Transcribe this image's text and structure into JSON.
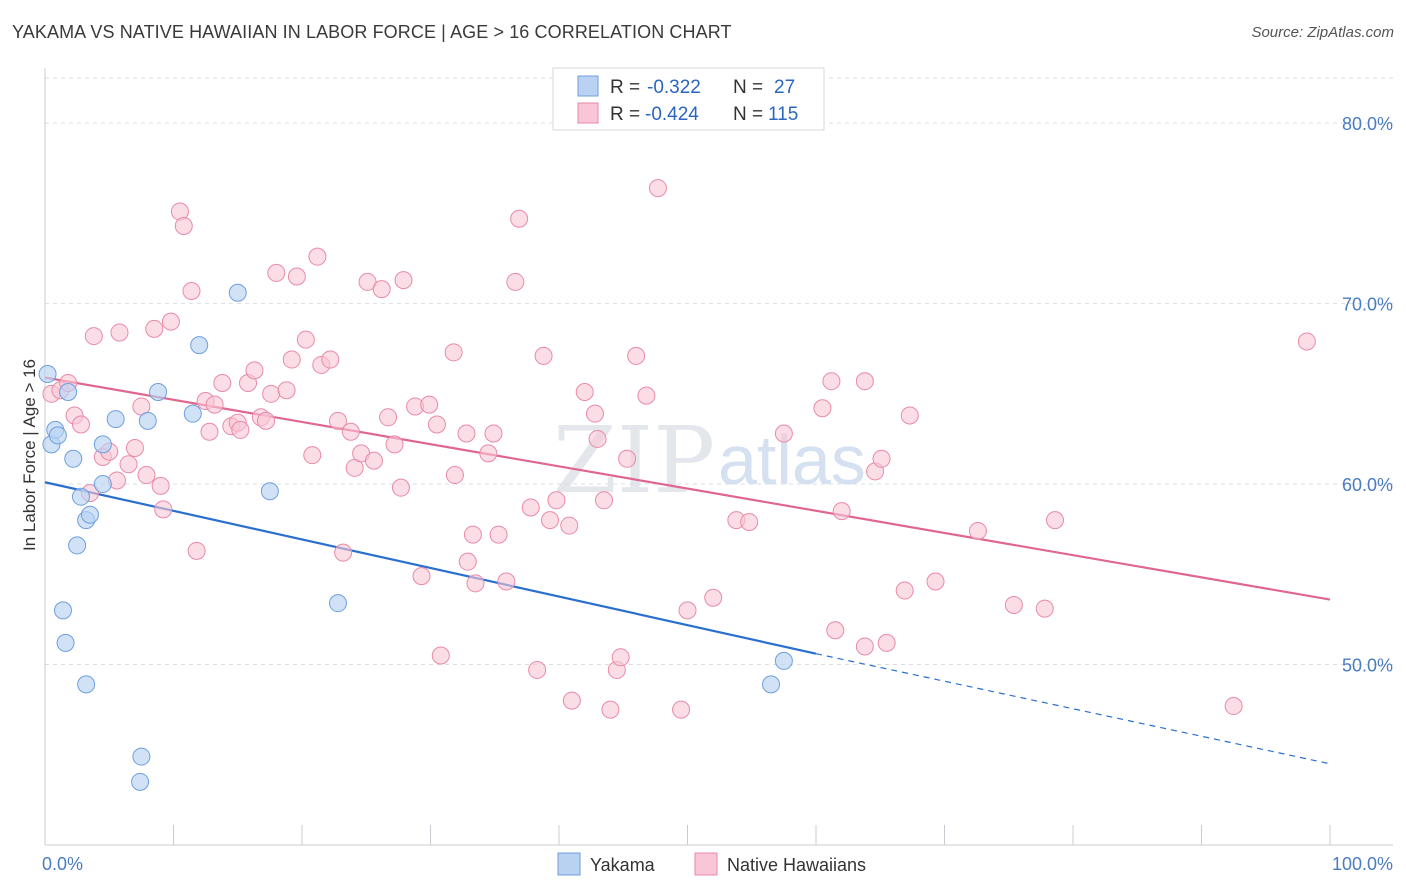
{
  "header": {
    "title": "YAKAMA VS NATIVE HAWAIIAN IN LABOR FORCE | AGE > 16 CORRELATION CHART",
    "source": "Source: ZipAtlas.com"
  },
  "watermark": {
    "zip": "ZIP",
    "atlas": "atlas"
  },
  "legend": {
    "rows": [
      {
        "r_label": "R =",
        "r_value": "-0.322",
        "n_label": "N =",
        "n_value": "27"
      },
      {
        "r_label": "R =",
        "r_value": "-0.424",
        "n_label": "N =",
        "n_value": "115"
      }
    ]
  },
  "colors": {
    "yakama_fill": "#b9d2f2",
    "yakama_stroke": "#6e9fde",
    "yakama_line": "#2a6fd0",
    "hawaiian_fill": "#f8c6d6",
    "hawaiian_stroke": "#e98aaa",
    "hawaiian_line": "#e06690",
    "grid": "#d9dde3",
    "axis_text": "#4a7cc0"
  },
  "chart_data": {
    "type": "scatter",
    "title": "YAKAMA VS NATIVE HAWAIIAN IN LABOR FORCE | AGE > 16 CORRELATION CHART",
    "xlabel": "",
    "ylabel": "In Labor Force | Age > 16",
    "xlim": [
      0,
      100
    ],
    "ylim": [
      40.0,
      82.5
    ],
    "x_tick_labels": [
      "0.0%",
      "100.0%"
    ],
    "y_ticks": [
      50,
      60,
      70,
      80
    ],
    "y_tick_labels": [
      "50.0%",
      "60.0%",
      "70.0%",
      "80.0%"
    ],
    "grid": true,
    "legend_position": "top-center",
    "series": [
      {
        "name": "Yakama",
        "r": -0.322,
        "n": 27,
        "trend": {
          "x0": 0,
          "y0": 60.1,
          "x1": 60,
          "y1": 50.6,
          "dashed_to_x": 100,
          "dashed_to_y": 44.5
        },
        "points": [
          [
            0.2,
            66.1
          ],
          [
            0.5,
            62.2
          ],
          [
            0.8,
            63.0
          ],
          [
            1.0,
            62.7
          ],
          [
            1.8,
            65.1
          ],
          [
            2.2,
            61.4
          ],
          [
            2.5,
            56.6
          ],
          [
            2.8,
            59.3
          ],
          [
            3.2,
            58.0
          ],
          [
            3.5,
            58.3
          ],
          [
            4.5,
            62.2
          ],
          [
            4.5,
            60.0
          ],
          [
            5.5,
            63.6
          ],
          [
            8.0,
            63.5
          ],
          [
            8.8,
            65.1
          ],
          [
            11.5,
            63.9
          ],
          [
            12.0,
            67.7
          ],
          [
            15.0,
            70.6
          ],
          [
            17.5,
            59.6
          ],
          [
            22.8,
            53.4
          ],
          [
            1.4,
            53.0
          ],
          [
            1.6,
            51.2
          ],
          [
            3.2,
            48.9
          ],
          [
            7.5,
            44.9
          ],
          [
            7.4,
            43.5
          ],
          [
            56.5,
            48.9
          ],
          [
            57.5,
            50.2
          ]
        ]
      },
      {
        "name": "Native Hawaiians",
        "r": -0.424,
        "n": 115,
        "trend": {
          "x0": 0,
          "y0": 65.9,
          "x1": 100,
          "y1": 53.6
        },
        "points": [
          [
            0.5,
            65.0
          ],
          [
            1.2,
            65.2
          ],
          [
            1.8,
            65.6
          ],
          [
            2.3,
            63.8
          ],
          [
            2.8,
            63.3
          ],
          [
            3.5,
            59.5
          ],
          [
            3.8,
            68.2
          ],
          [
            4.5,
            61.5
          ],
          [
            5.0,
            61.8
          ],
          [
            5.6,
            60.2
          ],
          [
            5.8,
            68.4
          ],
          [
            6.5,
            61.1
          ],
          [
            7.0,
            62.0
          ],
          [
            7.5,
            64.3
          ],
          [
            7.9,
            60.5
          ],
          [
            8.5,
            68.6
          ],
          [
            9.0,
            59.9
          ],
          [
            9.2,
            58.6
          ],
          [
            9.8,
            69.0
          ],
          [
            10.5,
            75.1
          ],
          [
            10.8,
            74.3
          ],
          [
            11.4,
            70.7
          ],
          [
            11.8,
            56.3
          ],
          [
            12.5,
            64.6
          ],
          [
            12.8,
            62.9
          ],
          [
            13.2,
            64.4
          ],
          [
            13.8,
            65.6
          ],
          [
            14.5,
            63.2
          ],
          [
            15.0,
            63.4
          ],
          [
            15.2,
            63.0
          ],
          [
            15.8,
            65.6
          ],
          [
            16.3,
            66.3
          ],
          [
            16.8,
            63.7
          ],
          [
            17.2,
            63.5
          ],
          [
            17.6,
            65.0
          ],
          [
            18.0,
            71.7
          ],
          [
            18.8,
            65.2
          ],
          [
            19.2,
            66.9
          ],
          [
            19.6,
            71.5
          ],
          [
            20.3,
            68.0
          ],
          [
            20.8,
            61.6
          ],
          [
            21.2,
            72.6
          ],
          [
            21.5,
            66.6
          ],
          [
            22.2,
            66.9
          ],
          [
            22.8,
            63.5
          ],
          [
            23.2,
            56.2
          ],
          [
            23.8,
            62.9
          ],
          [
            24.1,
            60.9
          ],
          [
            24.6,
            61.7
          ],
          [
            25.1,
            71.2
          ],
          [
            25.6,
            61.3
          ],
          [
            26.2,
            70.8
          ],
          [
            26.7,
            63.7
          ],
          [
            27.2,
            62.2
          ],
          [
            27.7,
            59.8
          ],
          [
            27.9,
            71.3
          ],
          [
            28.8,
            64.3
          ],
          [
            29.3,
            54.9
          ],
          [
            29.9,
            64.4
          ],
          [
            30.5,
            63.3
          ],
          [
            30.8,
            50.5
          ],
          [
            31.8,
            67.3
          ],
          [
            31.9,
            60.5
          ],
          [
            32.8,
            62.8
          ],
          [
            32.9,
            55.7
          ],
          [
            33.3,
            57.2
          ],
          [
            33.5,
            54.5
          ],
          [
            34.5,
            61.7
          ],
          [
            34.9,
            62.8
          ],
          [
            35.3,
            57.2
          ],
          [
            35.9,
            54.6
          ],
          [
            36.6,
            71.2
          ],
          [
            36.9,
            74.7
          ],
          [
            37.8,
            58.7
          ],
          [
            38.3,
            49.7
          ],
          [
            38.8,
            67.1
          ],
          [
            39.3,
            58.0
          ],
          [
            39.8,
            59.1
          ],
          [
            40.8,
            57.7
          ],
          [
            41.0,
            48.0
          ],
          [
            42.0,
            65.1
          ],
          [
            42.8,
            63.9
          ],
          [
            43.0,
            62.5
          ],
          [
            43.5,
            59.1
          ],
          [
            44.0,
            47.5
          ],
          [
            44.5,
            49.7
          ],
          [
            44.8,
            50.4
          ],
          [
            45.3,
            61.4
          ],
          [
            46.0,
            67.1
          ],
          [
            46.8,
            64.9
          ],
          [
            47.7,
            76.4
          ],
          [
            49.5,
            47.5
          ],
          [
            50.0,
            53.0
          ],
          [
            52.0,
            53.7
          ],
          [
            53.8,
            58.0
          ],
          [
            54.8,
            57.9
          ],
          [
            57.5,
            62.8
          ],
          [
            60.5,
            64.2
          ],
          [
            61.2,
            65.7
          ],
          [
            61.5,
            51.9
          ],
          [
            62.0,
            58.5
          ],
          [
            63.8,
            65.7
          ],
          [
            63.8,
            51.0
          ],
          [
            64.6,
            60.7
          ],
          [
            65.1,
            61.4
          ],
          [
            65.5,
            51.2
          ],
          [
            66.9,
            54.1
          ],
          [
            67.3,
            63.8
          ],
          [
            69.3,
            54.6
          ],
          [
            72.6,
            57.4
          ],
          [
            75.4,
            53.3
          ],
          [
            77.8,
            53.1
          ],
          [
            78.6,
            58.0
          ],
          [
            92.5,
            47.7
          ],
          [
            98.2,
            67.9
          ]
        ]
      }
    ]
  }
}
